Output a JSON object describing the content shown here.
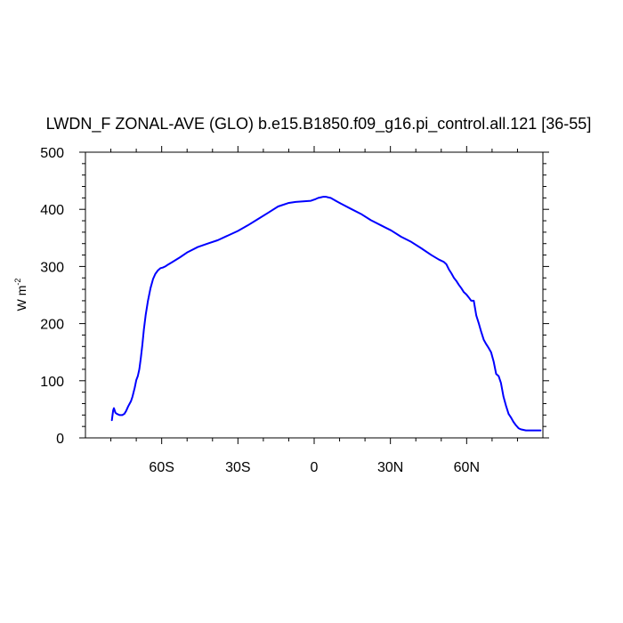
{
  "chart_data": {
    "type": "line",
    "title": "LWDN_F ZONAL-AVE (GLO) b.e15.B1850.f09_g16.pi_control.all.121 [36-55]",
    "xlabel": "",
    "ylabel": {
      "base": "W m",
      "superscript": "-2"
    },
    "xlim": [
      -90,
      90
    ],
    "ylim": [
      0,
      500
    ],
    "x_ticks": [
      {
        "value": -60,
        "label": "60S"
      },
      {
        "value": -30,
        "label": "30S"
      },
      {
        "value": 0,
        "label": "0"
      },
      {
        "value": 30,
        "label": "30N"
      },
      {
        "value": 60,
        "label": "60N"
      }
    ],
    "y_ticks": [
      {
        "value": 0,
        "label": "0"
      },
      {
        "value": 100,
        "label": "100"
      },
      {
        "value": 200,
        "label": "200"
      },
      {
        "value": 300,
        "label": "300"
      },
      {
        "value": 400,
        "label": "400"
      },
      {
        "value": 500,
        "label": "500"
      }
    ],
    "grid": false,
    "series": [
      {
        "color": "#0000ff",
        "x": [
          -79.6,
          -79.1,
          -78.8,
          -78.2,
          -77.6,
          -76.6,
          -75.5,
          -74.7,
          -74.0,
          -73.2,
          -72.6,
          -72.1,
          -71.5,
          -70.6,
          -70.0,
          -69.4,
          -68.8,
          -68.2,
          -67.6,
          -67.0,
          -66.3,
          -65.4,
          -64.4,
          -63.4,
          -62.5,
          -61.5,
          -60.5,
          -59.6,
          -58.6,
          -57.6,
          -55.7,
          -52.8,
          -49.8,
          -45.8,
          -41.9,
          -37.9,
          -34.0,
          -30.1,
          -26.1,
          -22.1,
          -18.1,
          -14.2,
          -10.2,
          -7.3,
          -4.3,
          -1.3,
          0.6,
          1.6,
          2.6,
          3.6,
          4.6,
          5.5,
          6.5,
          8.5,
          10.5,
          14.4,
          18.4,
          22.3,
          26.3,
          30.3,
          34.2,
          38.2,
          42.1,
          46.1,
          49.1,
          51.0,
          52.0,
          53.0,
          54.0,
          55.0,
          55.9,
          56.9,
          57.9,
          58.9,
          59.9,
          60.8,
          61.8,
          62.8,
          63.8,
          64.8,
          65.7,
          66.7,
          67.7,
          68.7,
          69.6,
          70.6,
          71.6,
          72.6,
          73.5,
          74.5,
          75.5,
          76.5,
          77.4,
          78.4,
          79.4,
          80.4,
          81.3,
          82.3,
          83.3,
          84.3,
          85.2,
          86.2,
          87.2,
          88.2,
          89.1
        ],
        "y": [
          31,
          48,
          52,
          44,
          42,
          40,
          40,
          42,
          47,
          55,
          60,
          64,
          72,
          88,
          101,
          108,
          120,
          140,
          163,
          190,
          215,
          240,
          262,
          278,
          287,
          293,
          297,
          298,
          300,
          303,
          308,
          316,
          325,
          334,
          340,
          346,
          354,
          362,
          372,
          383,
          394,
          405,
          411,
          413,
          414,
          415,
          418,
          420,
          421,
          422,
          422,
          421,
          420,
          415,
          410,
          401,
          392,
          381,
          372,
          363,
          352,
          343,
          332,
          320,
          312,
          308,
          304,
          295,
          288,
          280,
          275,
          268,
          262,
          255,
          251,
          246,
          240,
          240,
          214,
          200,
          186,
          172,
          164,
          157,
          150,
          134,
          112,
          108,
          96,
          72,
          56,
          42,
          36,
          28,
          22,
          17,
          15,
          14,
          13,
          13,
          13,
          13,
          13,
          13,
          13
        ]
      }
    ]
  }
}
